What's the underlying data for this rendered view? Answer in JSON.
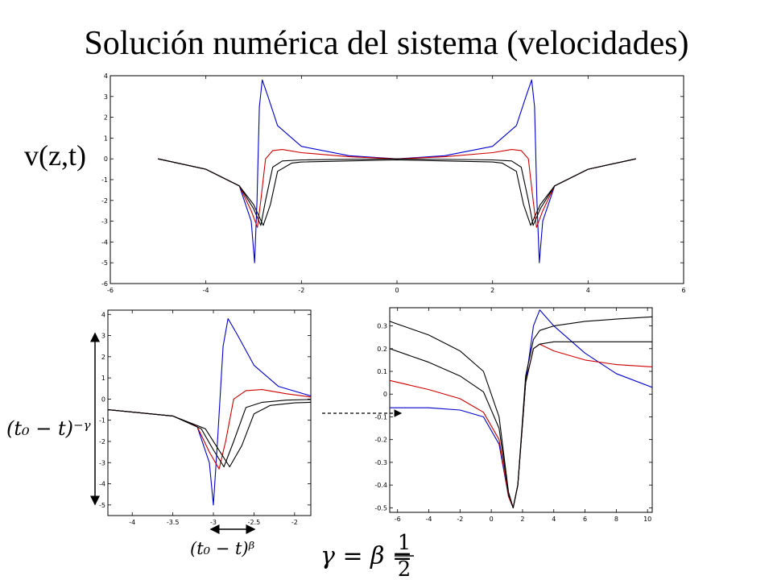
{
  "title": "Solución numérica del sistema (velocidades)",
  "ylabel": "v(z,t)",
  "annotations": {
    "vertical_exponent": "(t₀ − t)⁻ᵞ",
    "horizontal_exponent": "(t₀ − t)ᵝ",
    "equation_lhs": "γ = β =",
    "equation_num": "1",
    "equation_den": "2"
  },
  "colors": {
    "series_1": "#0000cc",
    "series_2": "#cc0000",
    "series_3": "#000000",
    "series_4": "#000000"
  },
  "chart_data": [
    {
      "type": "line",
      "title": "",
      "xlim": [
        -6,
        6
      ],
      "ylim": [
        -6,
        4
      ],
      "xticks": [
        "-6",
        "-4",
        "-2",
        "0",
        "2",
        "4",
        "6"
      ],
      "yticks": [
        "4",
        "3",
        "2",
        "1",
        "0",
        "-1",
        "-2",
        "-3",
        "-4",
        "-5",
        "-6"
      ],
      "series": [
        {
          "color": "#0000cc",
          "values": [
            [
              -5,
              0
            ],
            [
              -4,
              -0.5
            ],
            [
              -3.3,
              -1.3
            ],
            [
              -3.05,
              -3
            ],
            [
              -2.98,
              -5
            ],
            [
              -2.93,
              -2
            ],
            [
              -2.88,
              2.5
            ],
            [
              -2.82,
              3.8
            ],
            [
              -2.7,
              3
            ],
            [
              -2.5,
              1.6
            ],
            [
              -2,
              0.6
            ],
            [
              -1,
              0.15
            ],
            [
              0,
              0
            ],
            [
              1,
              0.15
            ],
            [
              2,
              0.6
            ],
            [
              2.5,
              1.6
            ],
            [
              2.7,
              3
            ],
            [
              2.82,
              3.8
            ],
            [
              2.88,
              2.5
            ],
            [
              2.93,
              -2
            ],
            [
              2.98,
              -5
            ],
            [
              3.05,
              -3
            ],
            [
              3.3,
              -1.3
            ],
            [
              4,
              -0.5
            ],
            [
              5,
              0
            ]
          ]
        },
        {
          "color": "#cc0000",
          "values": [
            [
              -5,
              0
            ],
            [
              -4,
              -0.5
            ],
            [
              -3.3,
              -1.3
            ],
            [
              -3.05,
              -2.5
            ],
            [
              -2.92,
              -3.3
            ],
            [
              -2.85,
              -2
            ],
            [
              -2.75,
              0
            ],
            [
              -2.6,
              0.4
            ],
            [
              -2.4,
              0.45
            ],
            [
              -2,
              0.3
            ],
            [
              -1,
              0.1
            ],
            [
              0,
              0
            ],
            [
              1,
              0.1
            ],
            [
              2,
              0.3
            ],
            [
              2.4,
              0.45
            ],
            [
              2.6,
              0.4
            ],
            [
              2.75,
              0
            ],
            [
              2.85,
              -2
            ],
            [
              2.92,
              -3.3
            ],
            [
              3.05,
              -2.5
            ],
            [
              3.3,
              -1.3
            ],
            [
              4,
              -0.5
            ],
            [
              5,
              0
            ]
          ]
        },
        {
          "color": "#000000",
          "values": [
            [
              -5,
              0
            ],
            [
              -4,
              -0.5
            ],
            [
              -3.3,
              -1.3
            ],
            [
              -3.0,
              -2.4
            ],
            [
              -2.85,
              -3.2
            ],
            [
              -2.75,
              -2
            ],
            [
              -2.6,
              -0.4
            ],
            [
              -2.4,
              -0.1
            ],
            [
              -2,
              -0.05
            ],
            [
              0,
              0
            ],
            [
              2,
              -0.05
            ],
            [
              2.4,
              -0.1
            ],
            [
              2.6,
              -0.4
            ],
            [
              2.75,
              -2
            ],
            [
              2.85,
              -3.2
            ],
            [
              3.0,
              -2.4
            ],
            [
              3.3,
              -1.3
            ],
            [
              4,
              -0.5
            ],
            [
              5,
              0
            ]
          ]
        },
        {
          "color": "#000000",
          "values": [
            [
              -5,
              0
            ],
            [
              -4,
              -0.5
            ],
            [
              -3.3,
              -1.3
            ],
            [
              -3.0,
              -2.2
            ],
            [
              -2.8,
              -3.2
            ],
            [
              -2.65,
              -2.2
            ],
            [
              -2.5,
              -0.6
            ],
            [
              -2.2,
              -0.2
            ],
            [
              -2,
              -0.15
            ],
            [
              0,
              -0.05
            ],
            [
              2,
              -0.15
            ],
            [
              2.2,
              -0.2
            ],
            [
              2.5,
              -0.6
            ],
            [
              2.65,
              -2.2
            ],
            [
              2.8,
              -3.2
            ],
            [
              3.0,
              -2.2
            ],
            [
              3.3,
              -1.3
            ],
            [
              4,
              -0.5
            ],
            [
              5,
              0
            ]
          ]
        }
      ]
    },
    {
      "type": "line",
      "title": "",
      "xlim": [
        -4.3,
        -1.8
      ],
      "ylim": [
        -5.5,
        4.2
      ],
      "xticks": [
        "-4",
        "-3.5",
        "-3",
        "-2.5",
        "-2"
      ],
      "yticks": [
        "4",
        "3",
        "2",
        "1",
        "0",
        "-1",
        "-2",
        "-3",
        "-4",
        "-5"
      ],
      "series": [
        {
          "color": "#0000cc",
          "values": [
            [
              -4.3,
              -0.5
            ],
            [
              -3.5,
              -0.8
            ],
            [
              -3.2,
              -1.3
            ],
            [
              -3.05,
              -3
            ],
            [
              -3.0,
              -5
            ],
            [
              -2.95,
              -2
            ],
            [
              -2.88,
              2.5
            ],
            [
              -2.82,
              3.8
            ],
            [
              -2.7,
              3
            ],
            [
              -2.5,
              1.6
            ],
            [
              -2.2,
              0.6
            ],
            [
              -1.8,
              0.15
            ]
          ]
        },
        {
          "color": "#cc0000",
          "values": [
            [
              -4.3,
              -0.5
            ],
            [
              -3.5,
              -0.8
            ],
            [
              -3.2,
              -1.3
            ],
            [
              -3.05,
              -2.5
            ],
            [
              -2.93,
              -3.3
            ],
            [
              -2.85,
              -2
            ],
            [
              -2.75,
              0
            ],
            [
              -2.6,
              0.4
            ],
            [
              -2.4,
              0.45
            ],
            [
              -2.1,
              0.25
            ],
            [
              -1.8,
              0.1
            ]
          ]
        },
        {
          "color": "#000000",
          "values": [
            [
              -4.3,
              -0.5
            ],
            [
              -3.5,
              -0.8
            ],
            [
              -3.15,
              -1.4
            ],
            [
              -3.0,
              -2.4
            ],
            [
              -2.87,
              -3.2
            ],
            [
              -2.75,
              -2
            ],
            [
              -2.6,
              -0.4
            ],
            [
              -2.4,
              -0.15
            ],
            [
              -2.1,
              -0.05
            ],
            [
              -1.8,
              -0.02
            ]
          ]
        },
        {
          "color": "#000000",
          "values": [
            [
              -4.3,
              -0.5
            ],
            [
              -3.5,
              -0.8
            ],
            [
              -3.1,
              -1.4
            ],
            [
              -2.95,
              -2.3
            ],
            [
              -2.8,
              -3.2
            ],
            [
              -2.65,
              -2.2
            ],
            [
              -2.5,
              -0.7
            ],
            [
              -2.3,
              -0.3
            ],
            [
              -2.0,
              -0.18
            ],
            [
              -1.8,
              -0.15
            ]
          ]
        }
      ]
    },
    {
      "type": "line",
      "title": "",
      "xlim": [
        -6.5,
        10.3
      ],
      "ylim": [
        -0.52,
        0.38
      ],
      "xticks": [
        "-6",
        "-4",
        "-2",
        "0",
        "2",
        "4",
        "6",
        "8",
        "10"
      ],
      "yticks": [
        "0.3",
        "0.2",
        "0.1",
        "0",
        "-0.1",
        "-0.2",
        "-0.3",
        "-0.4",
        "-0.5"
      ],
      "series": [
        {
          "color": "#0000cc",
          "values": [
            [
              -6.5,
              -0.06
            ],
            [
              -4,
              -0.06
            ],
            [
              -2,
              -0.07
            ],
            [
              -0.5,
              -0.1
            ],
            [
              0.5,
              -0.22
            ],
            [
              1.1,
              -0.45
            ],
            [
              1.4,
              -0.5
            ],
            [
              1.7,
              -0.4
            ],
            [
              2.2,
              0.05
            ],
            [
              2.7,
              0.3
            ],
            [
              3.1,
              0.37
            ],
            [
              4,
              0.3
            ],
            [
              6,
              0.18
            ],
            [
              8,
              0.09
            ],
            [
              10.3,
              0.03
            ]
          ]
        },
        {
          "color": "#cc0000",
          "values": [
            [
              -6.5,
              0.06
            ],
            [
              -4,
              0.02
            ],
            [
              -2,
              -0.02
            ],
            [
              -0.5,
              -0.08
            ],
            [
              0.5,
              -0.2
            ],
            [
              1.1,
              -0.45
            ],
            [
              1.4,
              -0.5
            ],
            [
              1.7,
              -0.4
            ],
            [
              2.2,
              0.05
            ],
            [
              2.7,
              0.2
            ],
            [
              3.1,
              0.22
            ],
            [
              4,
              0.19
            ],
            [
              6,
              0.15
            ],
            [
              8,
              0.13
            ],
            [
              10.3,
              0.12
            ]
          ]
        },
        {
          "color": "#000000",
          "values": [
            [
              -6.5,
              0.2
            ],
            [
              -4,
              0.14
            ],
            [
              -2,
              0.08
            ],
            [
              -0.5,
              0.01
            ],
            [
              0.5,
              -0.15
            ],
            [
              1.1,
              -0.44
            ],
            [
              1.4,
              -0.5
            ],
            [
              1.7,
              -0.4
            ],
            [
              2.2,
              0.05
            ],
            [
              2.7,
              0.2
            ],
            [
              3.1,
              0.22
            ],
            [
              4,
              0.23
            ],
            [
              6,
              0.23
            ],
            [
              8,
              0.23
            ],
            [
              10.3,
              0.23
            ]
          ]
        },
        {
          "color": "#000000",
          "values": [
            [
              -6.5,
              0.32
            ],
            [
              -4,
              0.26
            ],
            [
              -2,
              0.19
            ],
            [
              -0.5,
              0.1
            ],
            [
              0.5,
              -0.1
            ],
            [
              1.1,
              -0.43
            ],
            [
              1.4,
              -0.5
            ],
            [
              1.7,
              -0.4
            ],
            [
              2.2,
              0.08
            ],
            [
              2.7,
              0.24
            ],
            [
              3.1,
              0.28
            ],
            [
              4,
              0.3
            ],
            [
              6,
              0.32
            ],
            [
              8,
              0.33
            ],
            [
              10.3,
              0.34
            ]
          ]
        }
      ]
    }
  ]
}
